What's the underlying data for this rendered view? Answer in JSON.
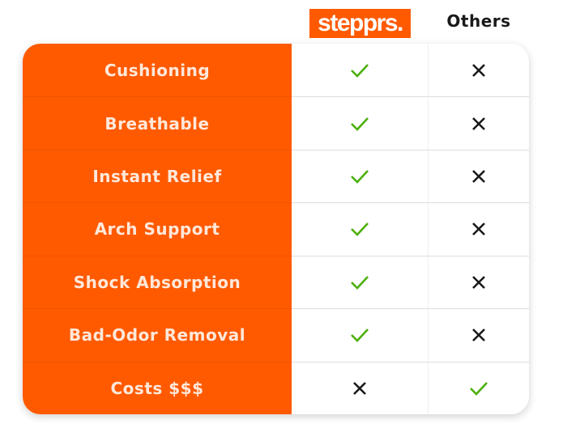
{
  "header": {
    "brand": "stepprs.",
    "others": "Others"
  },
  "colors": {
    "brand": "#ff5a00",
    "check": "#4caf0a",
    "cross": "#1a1a1a"
  },
  "rows": [
    {
      "feature": "Cushioning",
      "stepprs": "check-icon",
      "others": "cross-icon"
    },
    {
      "feature": "Breathable",
      "stepprs": "check-icon",
      "others": "cross-icon"
    },
    {
      "feature": "Instant Relief",
      "stepprs": "check-icon",
      "others": "cross-icon"
    },
    {
      "feature": "Arch Support",
      "stepprs": "check-icon",
      "others": "cross-icon"
    },
    {
      "feature": "Shock Absorption",
      "stepprs": "check-icon",
      "others": "cross-icon"
    },
    {
      "feature": "Bad-Odor Removal",
      "stepprs": "check-icon",
      "others": "cross-icon"
    },
    {
      "feature": "Costs $$$",
      "stepprs": "cross-icon",
      "others": "check-icon"
    }
  ]
}
